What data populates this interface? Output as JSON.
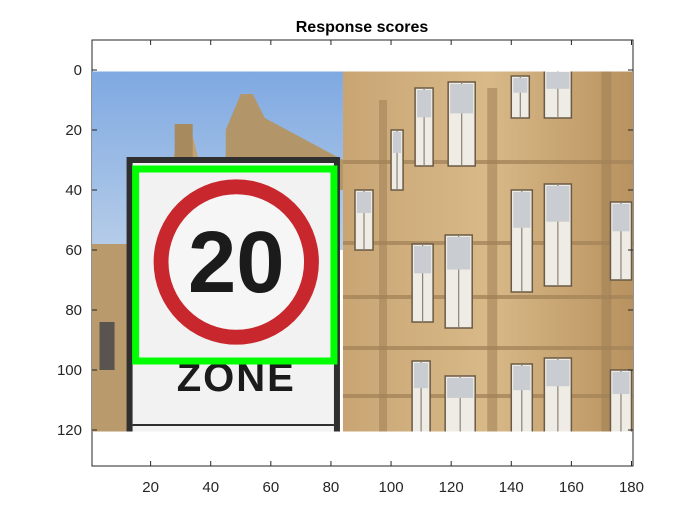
{
  "figure": {
    "title": "Response scores",
    "x_ticks": [
      "20",
      "40",
      "60",
      "80",
      "100",
      "120",
      "140",
      "160",
      "180"
    ],
    "y_ticks": [
      "0",
      "20",
      "40",
      "60",
      "80",
      "100",
      "120"
    ],
    "x_range": [
      0.5,
      180.5
    ],
    "y_range": [
      -10,
      132
    ],
    "image_range": {
      "x": [
        0.5,
        180.5
      ],
      "y": [
        0.5,
        120.5
      ]
    }
  },
  "image": {
    "description_labels": {
      "sign_number": "20",
      "sign_word": "ZONE"
    }
  },
  "detection_box": {
    "x_min": 15,
    "x_max": 81,
    "y_min": 33,
    "y_max": 97,
    "color": "#00ff00"
  },
  "colors": {
    "sky": "#8db4e6",
    "building": "#c9a878",
    "sign_red": "#c8282d",
    "sign_white": "#f2f2f2"
  }
}
